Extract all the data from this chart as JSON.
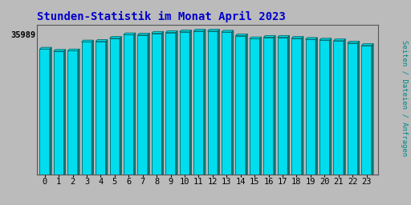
{
  "title": "Stunden-Statistik im Monat April 2023",
  "ylabel_right": "Seiten / Dateien / Anfragen",
  "ytick_label": "35989",
  "categories": [
    0,
    1,
    2,
    3,
    4,
    5,
    6,
    7,
    8,
    9,
    10,
    11,
    12,
    13,
    14,
    15,
    16,
    17,
    18,
    19,
    20,
    21,
    22,
    23
  ],
  "values": [
    0.87,
    0.855,
    0.858,
    0.92,
    0.923,
    0.945,
    0.97,
    0.968,
    0.98,
    0.985,
    0.99,
    0.995,
    0.995,
    0.988,
    0.963,
    0.942,
    0.952,
    0.952,
    0.945,
    0.938,
    0.933,
    0.928,
    0.912,
    0.895
  ],
  "bar_color": "#00DDEE",
  "bar_edge_color": "#006666",
  "bar_shadow_color": "#007777",
  "background_color": "#BBBBBB",
  "plot_bg_color": "#BBBBBB",
  "title_color": "#0000CC",
  "right_label_color": "#008888",
  "title_fontsize": 10,
  "tick_fontsize": 7.5
}
